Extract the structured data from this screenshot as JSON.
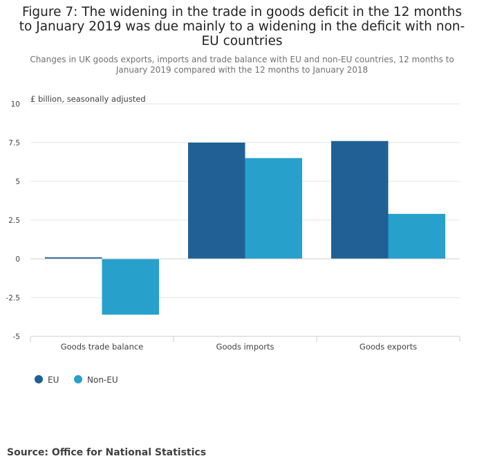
{
  "title": "Figure 7: The widening in the trade in goods deficit in the 12 months to January 2019 was due mainly to a widening in the deficit with non-EU countries",
  "subtitle": "Changes in UK goods exports, imports and trade balance with EU and non-EU countries, 12 months to January 2019 compared with the 12 months to January 2018",
  "source": "Source: Office for National Statistics",
  "colors": {
    "eu": "#206095",
    "non_eu": "#27a0cc"
  },
  "chart_data": {
    "type": "bar",
    "categories": [
      "Goods trade balance",
      "Goods imports",
      "Goods exports"
    ],
    "series": [
      {
        "name": "EU",
        "values": [
          0.1,
          7.5,
          7.6
        ]
      },
      {
        "name": "Non-EU",
        "values": [
          -3.6,
          6.5,
          2.9
        ]
      }
    ],
    "ylabel": "£ billion, seasonally adjusted",
    "ylim": [
      -5,
      10
    ],
    "yticks": [
      -5,
      -2.5,
      0,
      2.5,
      5,
      7.5,
      10
    ],
    "ytick_labels": [
      "-5",
      "-2.5",
      "0",
      "2.5",
      "5",
      "7.5",
      "10"
    ],
    "grid": true,
    "legend_position": "bottom-left"
  }
}
